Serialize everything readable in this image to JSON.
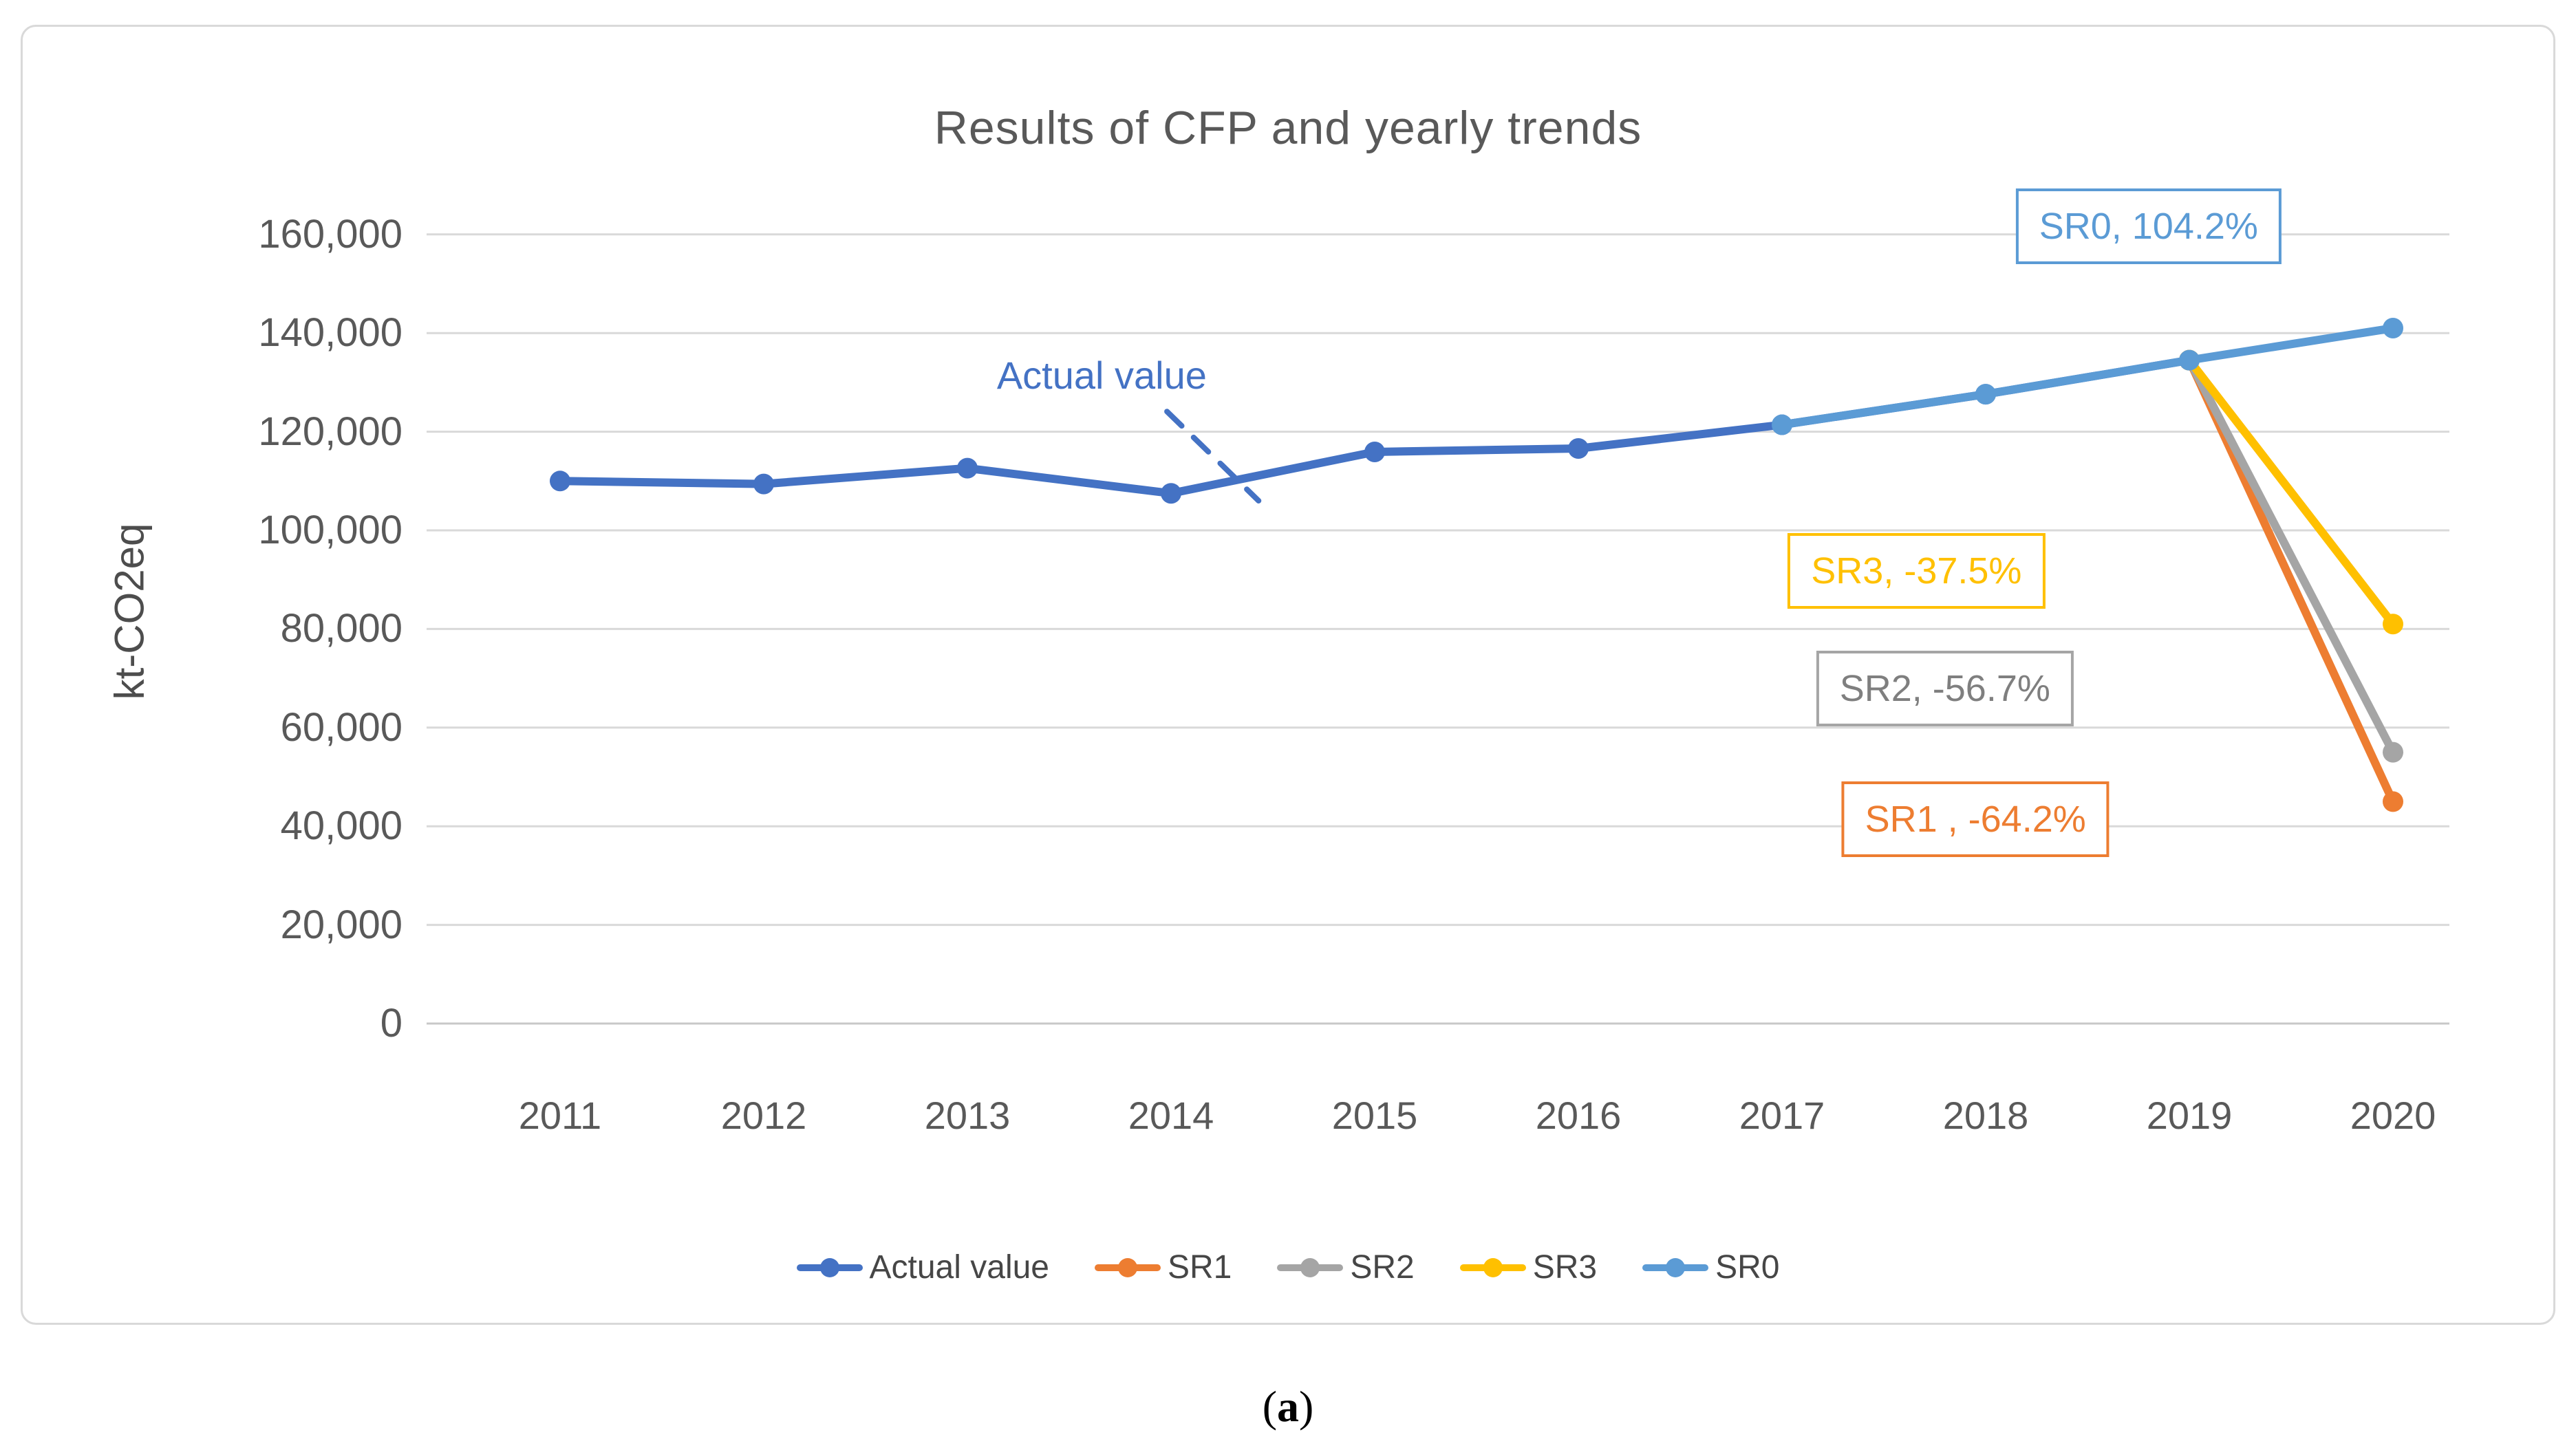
{
  "figure": {
    "title": "Results of CFP and yearly trends",
    "caption": {
      "open": "(",
      "letter": "a",
      "close": ")"
    }
  },
  "chart_data": {
    "type": "line",
    "title": "Results of CFP and yearly trends",
    "xlabel": "",
    "ylabel": "kt-CO2eq",
    "ylim": [
      0,
      160000
    ],
    "y_ticks": [
      0,
      20000,
      40000,
      60000,
      80000,
      100000,
      120000,
      140000,
      160000
    ],
    "y_tick_labels": [
      "0",
      "20,000",
      "40,000",
      "60,000",
      "80,000",
      "100,000",
      "120,000",
      "140,000",
      "160,000"
    ],
    "categories": [
      "2011",
      "2012",
      "2013",
      "2014",
      "2015",
      "2016",
      "2017",
      "2018",
      "2019",
      "2020"
    ],
    "grid": "horizontal",
    "legend_position": "bottom",
    "colors": {
      "actual": "#4472C4",
      "sr0": "#5B9BD5",
      "sr1": "#ED7D31",
      "sr2": "#A5A5A5",
      "sr3": "#FFC000",
      "gridline": "#D9D9D9",
      "axis_text": "#595959"
    },
    "series": [
      {
        "name": "Actual value",
        "color": "#4472C4",
        "years": [
          2011,
          2012,
          2013,
          2014,
          2015,
          2016,
          2017,
          2018,
          2019
        ],
        "values": [
          110000,
          109400,
          112600,
          107500,
          115900,
          116600,
          121400,
          127600,
          134500
        ]
      },
      {
        "name": "SR1",
        "color": "#ED7D31",
        "years": [
          2019,
          2020
        ],
        "values": [
          134500,
          45000
        ]
      },
      {
        "name": "SR2",
        "color": "#A5A5A5",
        "years": [
          2019,
          2020
        ],
        "values": [
          134500,
          55000
        ]
      },
      {
        "name": "SR3",
        "color": "#FFC000",
        "years": [
          2019,
          2020
        ],
        "values": [
          134500,
          81000
        ]
      },
      {
        "name": "SR0",
        "color": "#5B9BD5",
        "years": [
          2017,
          2018,
          2019,
          2020
        ],
        "values": [
          121400,
          127600,
          134500,
          141000
        ]
      }
    ],
    "annotations": [
      {
        "id": "sr0",
        "text": "SR0, 104.2%",
        "border_color": "#5B9BD5",
        "text_color": "#5B9BD5",
        "boxed": true,
        "year": 2018.8,
        "value": 161600
      },
      {
        "id": "sr3",
        "text": "SR3, -37.5%",
        "border_color": "#FFC000",
        "text_color": "#FFC000",
        "boxed": true,
        "year": 2017.66,
        "value": 91800
      },
      {
        "id": "sr2",
        "text": "SR2, -56.7%",
        "border_color": "#A5A5A5",
        "text_color": "#7F7F7F",
        "boxed": true,
        "year": 2017.8,
        "value": 67900
      },
      {
        "id": "sr1",
        "text": "SR1 , -64.2%",
        "border_color": "#ED7D31",
        "text_color": "#ED7D31",
        "boxed": true,
        "year": 2017.95,
        "value": 41400
      },
      {
        "id": "actual-value",
        "text": "Actual value",
        "text_color": "#4472C4",
        "boxed": false,
        "year": 2013.66,
        "value": 131400
      }
    ],
    "pointer": {
      "from_year": 2013.98,
      "from_value": 124100,
      "to_year": 2014.43,
      "to_value": 106000,
      "color": "#4472C4"
    }
  }
}
